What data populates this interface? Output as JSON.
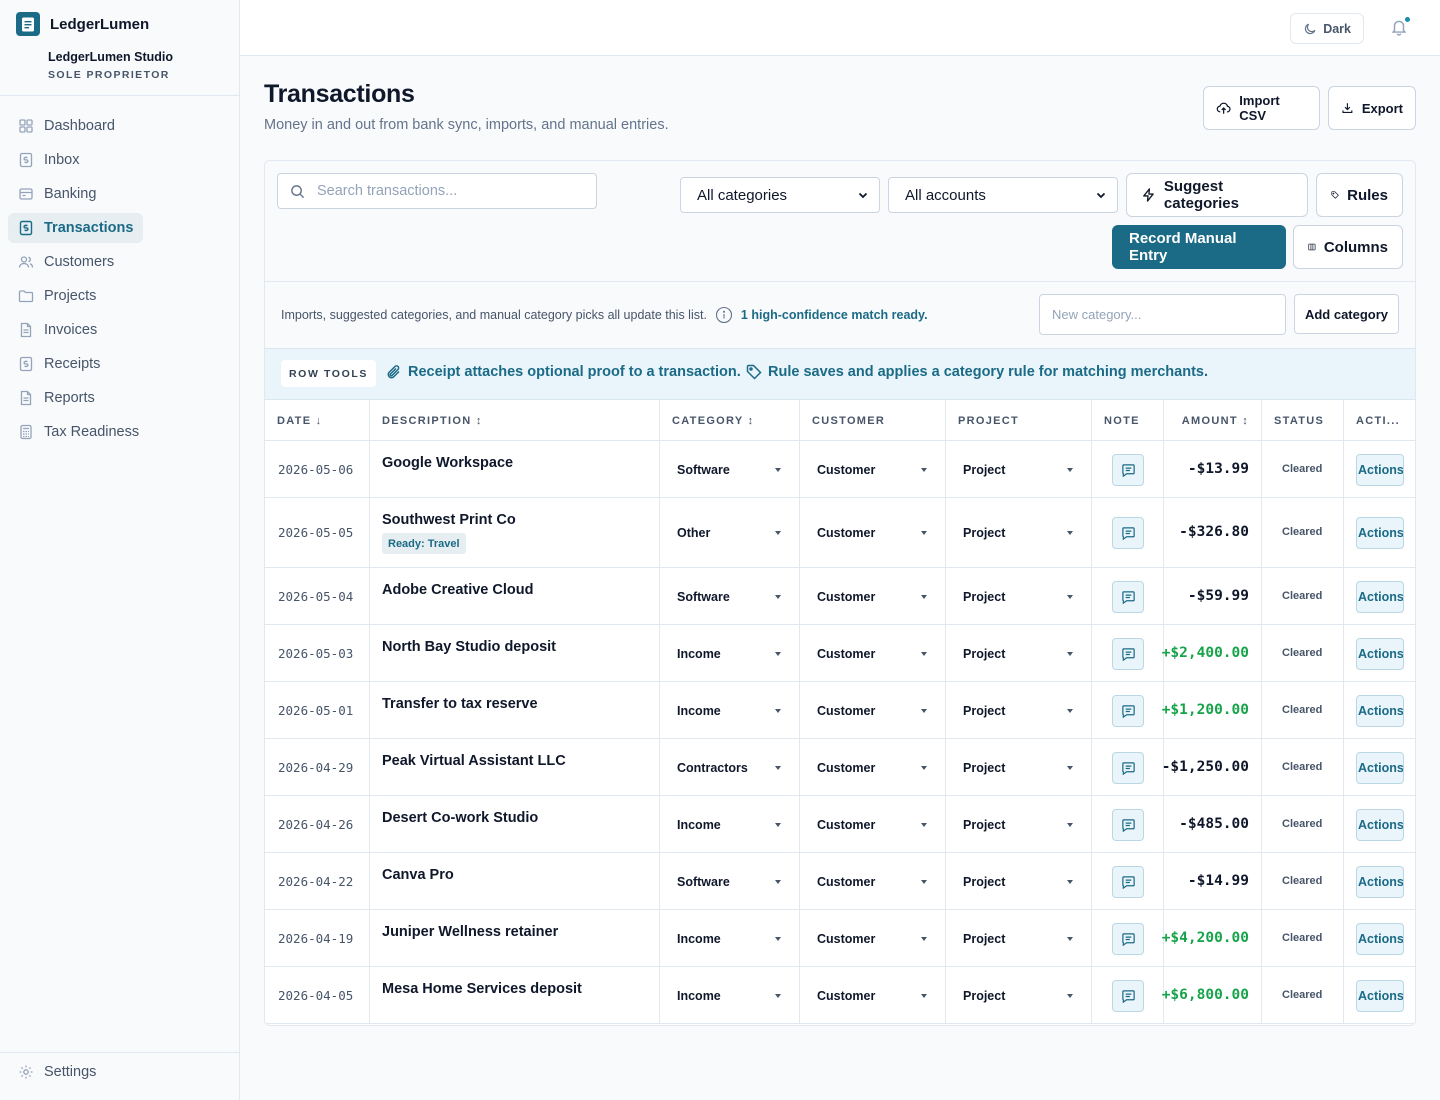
{
  "app": {
    "name": "LedgerLumen",
    "org_name": "LedgerLumen Studio",
    "org_type": "SOLE PROPRIETOR"
  },
  "nav": {
    "items": [
      {
        "label": "Dashboard",
        "icon": "dashboard-icon"
      },
      {
        "label": "Inbox",
        "icon": "dollar-doc-icon"
      },
      {
        "label": "Banking",
        "icon": "bank-icon"
      },
      {
        "label": "Transactions",
        "icon": "dollar-doc-icon",
        "active": true
      },
      {
        "label": "Customers",
        "icon": "users-icon"
      },
      {
        "label": "Projects",
        "icon": "folder-icon"
      },
      {
        "label": "Invoices",
        "icon": "document-icon"
      },
      {
        "label": "Receipts",
        "icon": "dollar-doc-icon"
      },
      {
        "label": "Reports",
        "icon": "document-icon"
      },
      {
        "label": "Tax Readiness",
        "icon": "calculator-icon"
      }
    ],
    "settings_label": "Settings"
  },
  "topbar": {
    "theme_label": "Dark",
    "notifications_unread": true
  },
  "header": {
    "title": "Transactions",
    "subtitle": "Money in and out from bank sync, imports, and manual entries.",
    "import_label": "Import CSV",
    "export_label": "Export"
  },
  "toolbar": {
    "search_placeholder": "Search transactions...",
    "category_filter": "All categories",
    "account_filter": "All accounts",
    "suggest_label": "Suggest categories",
    "rules_label": "Rules",
    "record_label": "Record Manual Entry",
    "columns_label": "Columns"
  },
  "info": {
    "text": "Imports, suggested categories, and manual category picks all update this list.",
    "match_link": "1 high-confidence match ready.",
    "new_category_placeholder": "New category...",
    "add_category_label": "Add category"
  },
  "row_tools": {
    "tag": "ROW TOOLS",
    "receipt_text": "Receipt attaches optional proof to a transaction.",
    "rule_text": "Rule saves and applies a category rule for matching merchants."
  },
  "table": {
    "headers": {
      "date": "DATE ↓",
      "description": "DESCRIPTION ↕",
      "category": "CATEGORY ↕",
      "customer": "CUSTOMER",
      "project": "PROJECT",
      "note": "NOTE",
      "amount": "AMOUNT ↕",
      "status": "STATUS",
      "actions": "ACTI..."
    },
    "rows": [
      {
        "date": "2026-05-06",
        "description": "Google Workspace",
        "badge": "",
        "category": "Software",
        "customer": "Customer",
        "project": "Project",
        "amount": "-$13.99",
        "sign": "neg",
        "status": "Cleared",
        "action": "Actions"
      },
      {
        "date": "2026-05-05",
        "description": "Southwest Print Co",
        "badge": "Ready: Travel",
        "category": "Other",
        "customer": "Customer",
        "project": "Project",
        "amount": "-$326.80",
        "sign": "neg",
        "status": "Cleared",
        "action": "Actions"
      },
      {
        "date": "2026-05-04",
        "description": "Adobe Creative Cloud",
        "badge": "",
        "category": "Software",
        "customer": "Customer",
        "project": "Project",
        "amount": "-$59.99",
        "sign": "neg",
        "status": "Cleared",
        "action": "Actions"
      },
      {
        "date": "2026-05-03",
        "description": "North Bay Studio deposit",
        "badge": "",
        "category": "Income",
        "customer": "Customer",
        "project": "Project",
        "amount": "+$2,400.00",
        "sign": "pos",
        "status": "Cleared",
        "action": "Actions"
      },
      {
        "date": "2026-05-01",
        "description": "Transfer to tax reserve",
        "badge": "",
        "category": "Income",
        "customer": "Customer",
        "project": "Project",
        "amount": "+$1,200.00",
        "sign": "pos",
        "status": "Cleared",
        "action": "Actions"
      },
      {
        "date": "2026-04-29",
        "description": "Peak Virtual Assistant LLC",
        "badge": "",
        "category": "Contractors",
        "customer": "Customer",
        "project": "Project",
        "amount": "-$1,250.00",
        "sign": "neg",
        "status": "Cleared",
        "action": "Actions"
      },
      {
        "date": "2026-04-26",
        "description": "Desert Co-work Studio",
        "badge": "",
        "category": "Income",
        "customer": "Customer",
        "project": "Project",
        "amount": "-$485.00",
        "sign": "neg",
        "status": "Cleared",
        "action": "Actions"
      },
      {
        "date": "2026-04-22",
        "description": "Canva Pro",
        "badge": "",
        "category": "Software",
        "customer": "Customer",
        "project": "Project",
        "amount": "-$14.99",
        "sign": "neg",
        "status": "Cleared",
        "action": "Actions"
      },
      {
        "date": "2026-04-19",
        "description": "Juniper Wellness retainer",
        "badge": "",
        "category": "Income",
        "customer": "Customer",
        "project": "Project",
        "amount": "+$4,200.00",
        "sign": "pos",
        "status": "Cleared",
        "action": "Actions"
      },
      {
        "date": "2026-04-05",
        "description": "Mesa Home Services deposit",
        "badge": "",
        "category": "Income",
        "customer": "Customer",
        "project": "Project",
        "amount": "+$6,800.00",
        "sign": "pos",
        "status": "Cleared",
        "action": "Actions"
      }
    ]
  },
  "colors": {
    "accent": "#1b6a86",
    "positive": "#16a34a",
    "text": "#0f172a",
    "muted": "#475569"
  }
}
